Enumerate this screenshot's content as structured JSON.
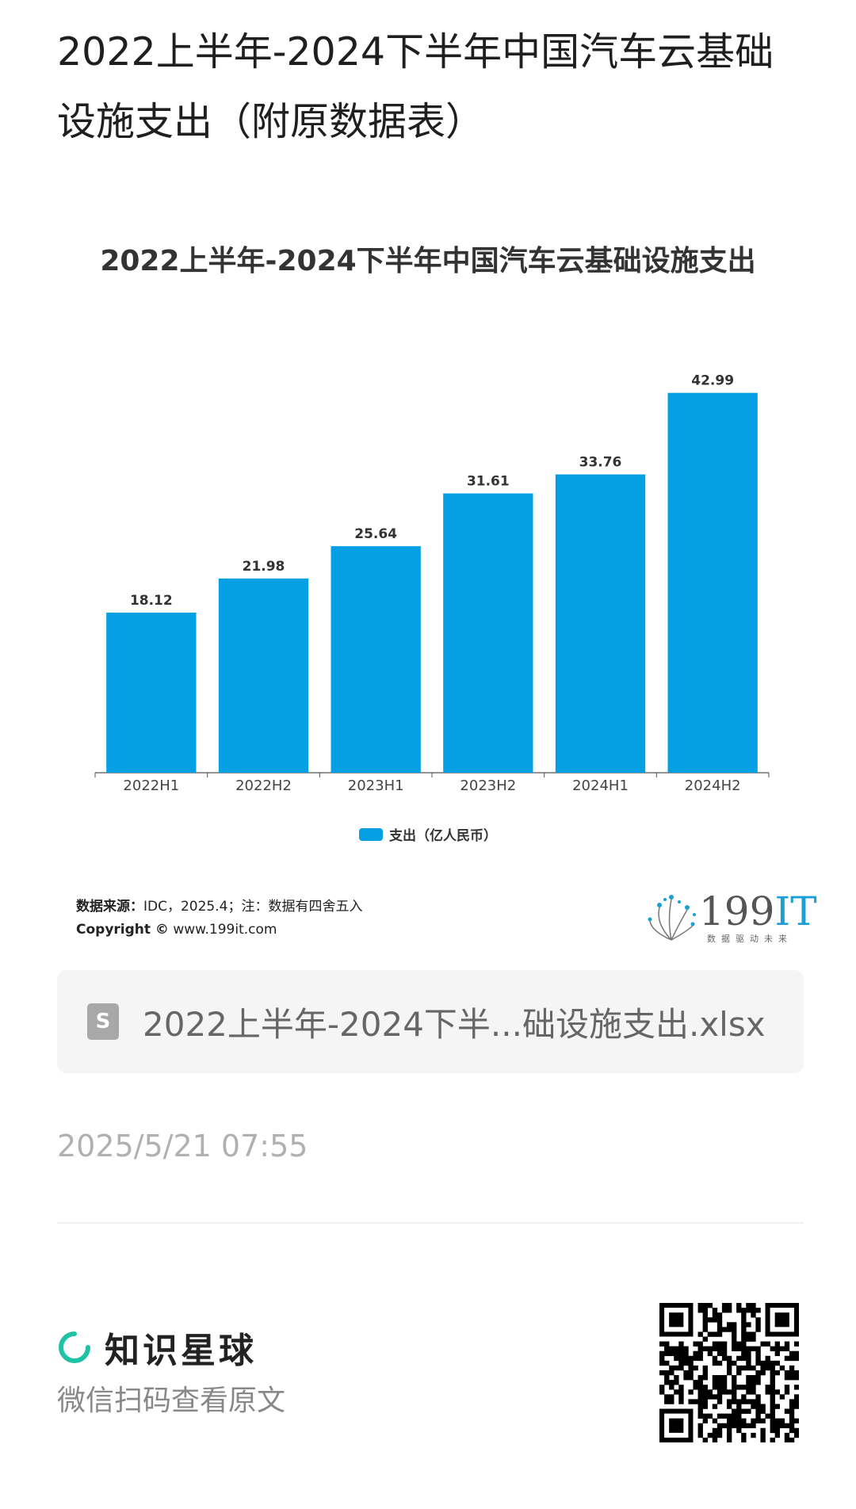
{
  "page": {
    "title": "2022上半年-2024下半年中国汽车云基础设施支出（附原数据表）"
  },
  "chart_data": {
    "type": "bar",
    "title": "2022上半年-2024下半年中国汽车云基础设施支出",
    "categories": [
      "2022H1",
      "2022H2",
      "2023H1",
      "2023H2",
      "2024H1",
      "2024H2"
    ],
    "series": [
      {
        "name": "支出（亿人民币）",
        "values": [
          18.12,
          21.98,
          25.64,
          31.61,
          33.76,
          42.99
        ],
        "color": "#05a0e4"
      }
    ],
    "value_labels": [
      "18.12",
      "21.98",
      "25.64",
      "31.61",
      "33.76",
      "42.99"
    ],
    "ylim": [
      0,
      45
    ],
    "grid": false,
    "legend_position": "bottom-center"
  },
  "source": {
    "label": "数据来源：",
    "text": "IDC，2025.4；注：数据有四舍五入",
    "copyright_label": "Copyright ©",
    "copyright_text": "www.199it.com"
  },
  "logo": {
    "num": "199",
    "suffix": "IT",
    "slogan": "数据驱动未来"
  },
  "file": {
    "icon": "spreadsheet-icon",
    "name": "2022上半年-2024下半...础设施支出.xlsx"
  },
  "timestamp": "2025/5/21 07:55",
  "footer": {
    "brand_icon": "zsxq-ring-icon",
    "brand_name": "知识星球",
    "scan_text": "微信扫码查看原文",
    "accent": "#1ec2a4"
  },
  "colors": {
    "bar": "#05a0e4",
    "text": "#1f1f1f",
    "muted": "#b0b0b0"
  }
}
